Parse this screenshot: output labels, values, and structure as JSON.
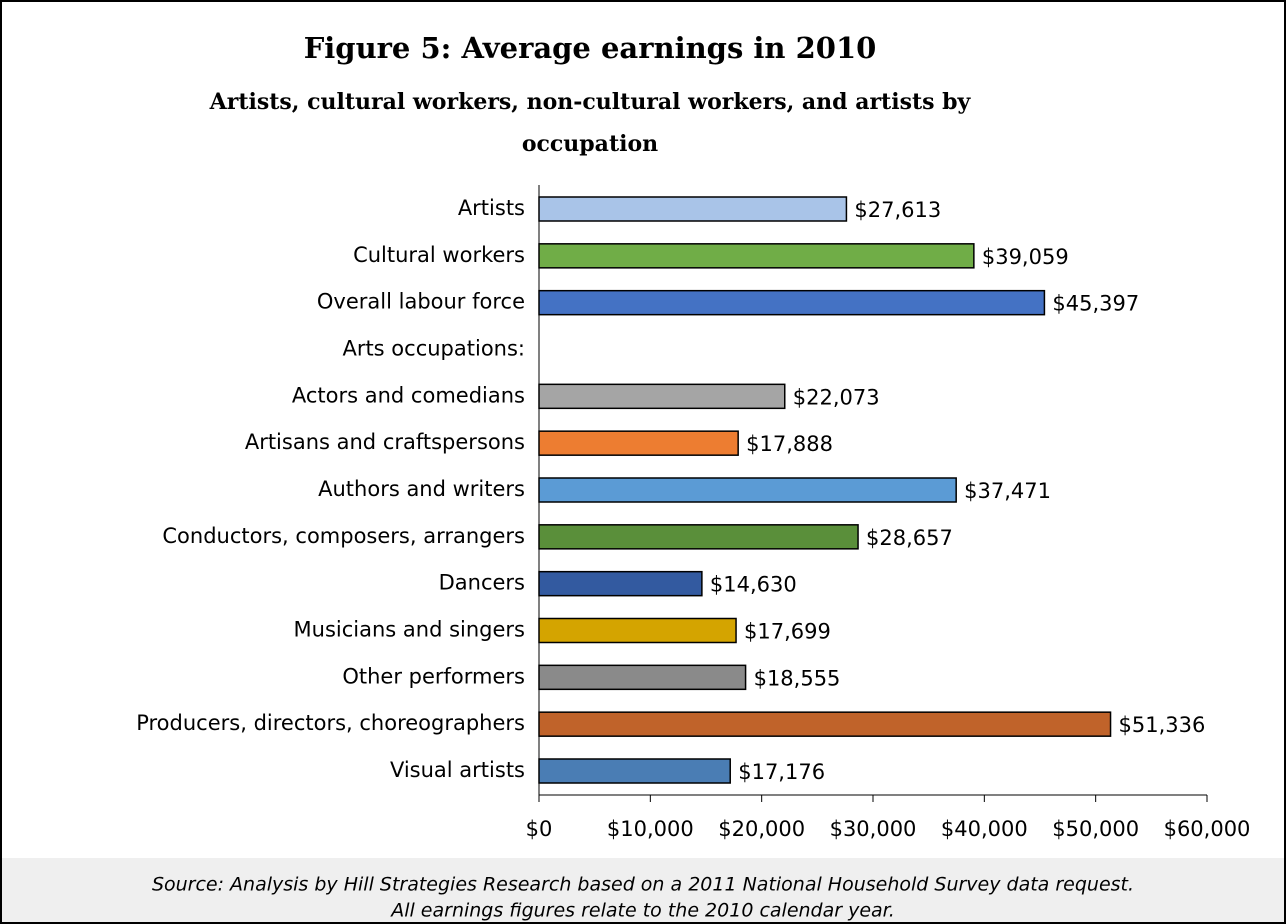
{
  "chart_data": {
    "type": "bar",
    "orientation": "horizontal",
    "title": "Figure 5: Average earnings in 2010",
    "subtitle": [
      "Artists, cultural workers, non-cultural workers, and artists by",
      "occupation"
    ],
    "categories": [
      "Artists",
      "Cultural workers",
      "Overall labour force",
      "Arts occupations:",
      "Actors and comedians",
      "Artisans and craftspersons",
      "Authors and writers",
      "Conductors, composers, arrangers",
      "Dancers",
      "Musicians and singers",
      "Other performers",
      "Producers, directors, choreographers",
      "Visual artists"
    ],
    "values": [
      27613,
      39059,
      45397,
      null,
      22073,
      17888,
      37471,
      28657,
      14630,
      17699,
      18555,
      51336,
      17176
    ],
    "value_labels": [
      "$27,613",
      "$39,059",
      "$45,397",
      null,
      "$22,073",
      "$17,888",
      "$37,471",
      "$28,657",
      "$14,630",
      "$17,699",
      "$18,555",
      "$51,336",
      "$17,176"
    ],
    "colors": [
      "#a9c4e8",
      "#70ad47",
      "#4472c4",
      null,
      "#a5a5a5",
      "#ed7d31",
      "#5b9bd5",
      "#5a8f3a",
      "#335aa0",
      "#d4a400",
      "#8a8a8a",
      "#c0632a",
      "#4a7db4"
    ],
    "xlim": [
      0,
      60000
    ],
    "xticks": [
      {
        "value": 0,
        "label": "$0"
      },
      {
        "value": 10000,
        "label": "$10,000"
      },
      {
        "value": 20000,
        "label": "$20,000"
      },
      {
        "value": 30000,
        "label": "$30,000"
      },
      {
        "value": 40000,
        "label": "$40,000"
      },
      {
        "value": 50000,
        "label": "$50,000"
      },
      {
        "value": 60000,
        "label": "$60,000"
      }
    ],
    "grid": false,
    "source": [
      "Source: Analysis by Hill Strategies Research based on a 2011 National Household Survey data request.",
      "All earnings figures relate to the 2010 calendar year."
    ]
  }
}
